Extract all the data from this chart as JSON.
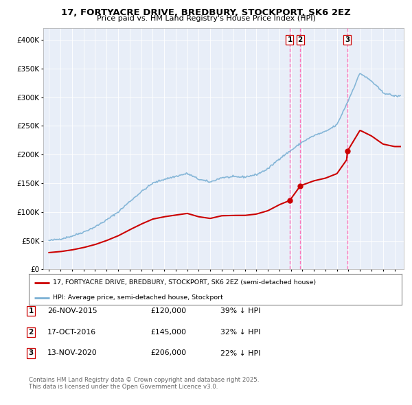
{
  "title1": "17, FORTYACRE DRIVE, BREDBURY, STOCKPORT, SK6 2EZ",
  "title2": "Price paid vs. HM Land Registry's House Price Index (HPI)",
  "legend_label_red": "17, FORTYACRE DRIVE, BREDBURY, STOCKPORT, SK6 2EZ (semi-detached house)",
  "legend_label_blue": "HPI: Average price, semi-detached house, Stockport",
  "footer1": "Contains HM Land Registry data © Crown copyright and database right 2025.",
  "footer2": "This data is licensed under the Open Government Licence v3.0.",
  "sales": [
    {
      "label": "1",
      "date": "26-NOV-2015",
      "price": 120000,
      "pct": "39% ↓ HPI",
      "year": 2015.9
    },
    {
      "label": "2",
      "date": "17-OCT-2016",
      "price": 145000,
      "pct": "32% ↓ HPI",
      "year": 2016.8
    },
    {
      "label": "3",
      "date": "13-NOV-2020",
      "price": 206000,
      "pct": "22% ↓ HPI",
      "year": 2020.9
    }
  ],
  "vline_color": "#ff69b4",
  "red_color": "#cc0000",
  "blue_color": "#7ab0d4",
  "chart_bg": "#e8eef8",
  "ylim": [
    0,
    420000
  ],
  "xlim_start": 1994.5,
  "xlim_end": 2025.8,
  "hpi_years": [
    1995,
    1996,
    1997,
    1998,
    1999,
    2000,
    2001,
    2002,
    2003,
    2004,
    2005,
    2006,
    2007,
    2008,
    2009,
    2010,
    2011,
    2012,
    2013,
    2014,
    2015,
    2016,
    2017,
    2018,
    2019,
    2020,
    2021,
    2022,
    2023,
    2024,
    2025
  ],
  "hpi_values": [
    50000,
    53000,
    58000,
    65000,
    74000,
    86000,
    100000,
    118000,
    135000,
    150000,
    157000,
    162000,
    167000,
    157000,
    152000,
    160000,
    161000,
    161000,
    165000,
    175000,
    193000,
    207000,
    222000,
    233000,
    240000,
    252000,
    295000,
    342000,
    328000,
    308000,
    302000
  ]
}
